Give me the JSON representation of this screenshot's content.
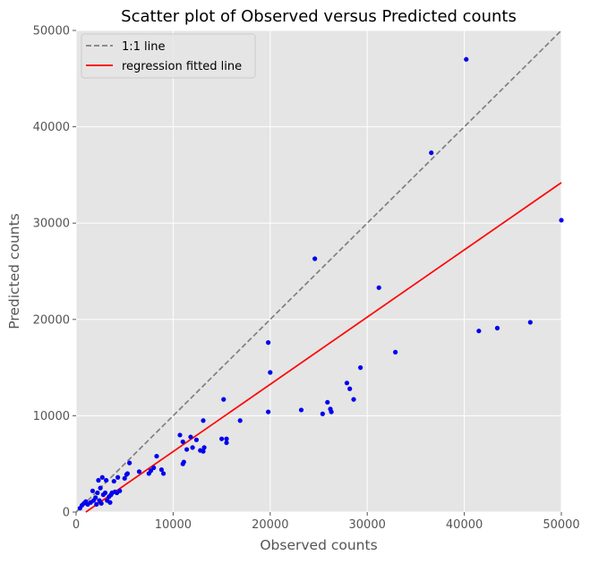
{
  "chart_data": {
    "type": "scatter",
    "title": "Scatter plot of Observed versus Predicted counts",
    "xlabel": "Observed counts",
    "ylabel": "Predicted counts",
    "xlim": [
      0,
      50000
    ],
    "ylim": [
      0,
      50000
    ],
    "xticks": [
      0,
      10000,
      20000,
      30000,
      40000,
      50000
    ],
    "yticks": [
      0,
      10000,
      20000,
      30000,
      40000,
      50000
    ],
    "xtick_labels": [
      "0",
      "10000",
      "20000",
      "30000",
      "40000",
      "50000"
    ],
    "ytick_labels": [
      "0",
      "10000",
      "20000",
      "30000",
      "40000",
      "50000"
    ],
    "grid": true,
    "style": "ggplot",
    "legend": {
      "position": "upper-left",
      "entries": [
        {
          "label": "1:1 line",
          "style": "dashed",
          "color": "#808080"
        },
        {
          "label": "regression fitted line",
          "style": "solid",
          "color": "#ff0000"
        }
      ]
    },
    "series": [
      {
        "kind": "points",
        "color": "#0000ee",
        "points": [
          [
            400,
            400
          ],
          [
            600,
            700
          ],
          [
            800,
            900
          ],
          [
            1000,
            1100
          ],
          [
            1200,
            800
          ],
          [
            1500,
            1000
          ],
          [
            1700,
            2200
          ],
          [
            1800,
            1200
          ],
          [
            2000,
            1500
          ],
          [
            2100,
            800
          ],
          [
            2200,
            2000
          ],
          [
            2300,
            3300
          ],
          [
            2400,
            1200
          ],
          [
            2500,
            2500
          ],
          [
            2600,
            900
          ],
          [
            2700,
            3600
          ],
          [
            2800,
            1800
          ],
          [
            3000,
            2000
          ],
          [
            3100,
            3300
          ],
          [
            3200,
            1200
          ],
          [
            3400,
            1600
          ],
          [
            3500,
            1000
          ],
          [
            3600,
            1800
          ],
          [
            3700,
            2000
          ],
          [
            3900,
            3200
          ],
          [
            4000,
            2100
          ],
          [
            4200,
            2000
          ],
          [
            4300,
            3600
          ],
          [
            4500,
            2200
          ],
          [
            5000,
            3500
          ],
          [
            5200,
            3900
          ],
          [
            5300,
            4000
          ],
          [
            5500,
            5100
          ],
          [
            6500,
            4200
          ],
          [
            7500,
            4000
          ],
          [
            7700,
            4300
          ],
          [
            8000,
            4600
          ],
          [
            8300,
            5800
          ],
          [
            8800,
            4400
          ],
          [
            9000,
            4000
          ],
          [
            10700,
            8000
          ],
          [
            11000,
            7300
          ],
          [
            11000,
            5000
          ],
          [
            11100,
            5200
          ],
          [
            11400,
            6500
          ],
          [
            11800,
            7800
          ],
          [
            12000,
            6700
          ],
          [
            12400,
            7500
          ],
          [
            12800,
            6400
          ],
          [
            13100,
            9500
          ],
          [
            13100,
            6300
          ],
          [
            13200,
            6700
          ],
          [
            15000,
            7600
          ],
          [
            15200,
            11700
          ],
          [
            15500,
            7200
          ],
          [
            15500,
            7600
          ],
          [
            16900,
            9500
          ],
          [
            19800,
            17600
          ],
          [
            19800,
            10400
          ],
          [
            20000,
            14500
          ],
          [
            23200,
            10600
          ],
          [
            24600,
            26300
          ],
          [
            25400,
            10200
          ],
          [
            25900,
            11400
          ],
          [
            26200,
            10700
          ],
          [
            26300,
            10400
          ],
          [
            27900,
            13400
          ],
          [
            28200,
            12800
          ],
          [
            28600,
            11700
          ],
          [
            29300,
            15000
          ],
          [
            31200,
            23300
          ],
          [
            32900,
            16600
          ],
          [
            36600,
            37300
          ],
          [
            40200,
            47000
          ],
          [
            41500,
            18800
          ],
          [
            43400,
            19100
          ],
          [
            46800,
            19700
          ],
          [
            50000,
            30300
          ]
        ]
      },
      {
        "name": "1:1 line",
        "kind": "line",
        "style": "dashed",
        "color": "#808080",
        "x": [
          0,
          50000
        ],
        "y": [
          0,
          50000
        ]
      },
      {
        "name": "regression fitted line",
        "kind": "line",
        "style": "solid",
        "color": "#ff0000",
        "x": [
          1000,
          50000
        ],
        "y": [
          0,
          34200
        ]
      }
    ]
  }
}
